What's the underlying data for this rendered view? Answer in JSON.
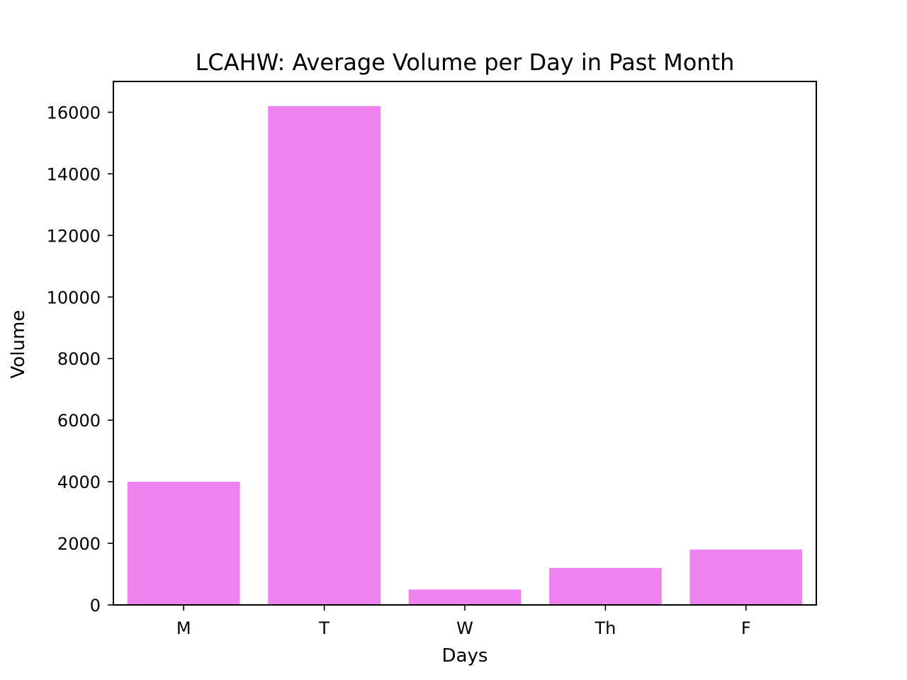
{
  "chart_data": {
    "type": "bar",
    "title": "LCAHW: Average Volume per Day in Past Month",
    "xlabel": "Days",
    "ylabel": "Volume",
    "categories": [
      "M",
      "T",
      "W",
      "Th",
      "F"
    ],
    "values": [
      4000,
      16200,
      500,
      1200,
      1800
    ],
    "ylim": [
      0,
      17000
    ],
    "yticks": [
      0,
      2000,
      4000,
      6000,
      8000,
      10000,
      12000,
      14000,
      16000
    ],
    "ytick_labels": [
      "0",
      "2000",
      "4000",
      "6000",
      "8000",
      "10000",
      "12000",
      "14000",
      "16000"
    ],
    "bar_color": "#ee82ee",
    "grid": false,
    "legend": "none"
  }
}
